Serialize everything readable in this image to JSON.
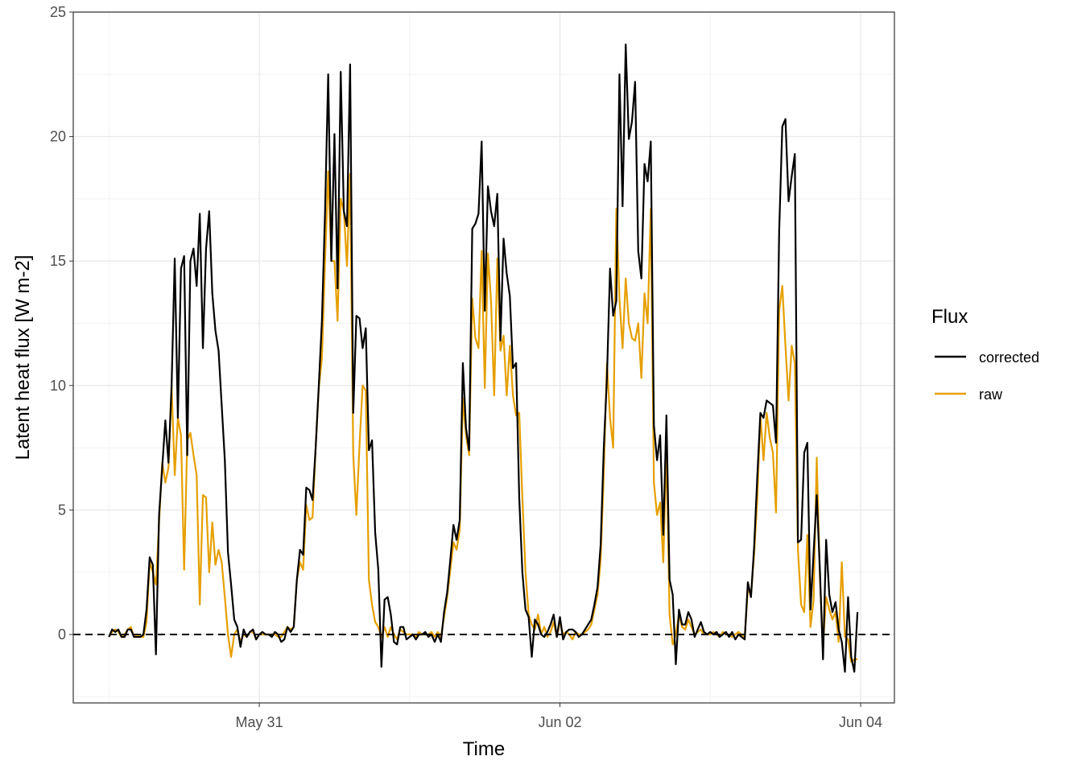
{
  "chart_data": {
    "type": "line",
    "xlabel": "Time",
    "ylabel": "Latent heat flux [W m-2]",
    "legend_title": "Flux",
    "legend": "right",
    "x": [
      0,
      0.5,
      1,
      1.5,
      2,
      2.5,
      3,
      3.5,
      4,
      4.5,
      5,
      5.5,
      6,
      6.5,
      7,
      7.5,
      8,
      8.5,
      9,
      9.5,
      10,
      10.5,
      11,
      11.5,
      12,
      12.5,
      13,
      13.5,
      14,
      14.5,
      15,
      15.5,
      16,
      16.5,
      17,
      17.5,
      18,
      18.5,
      19,
      19.5,
      20,
      20.5,
      21,
      21.5,
      22,
      22.5,
      23,
      23.5,
      24,
      24.5,
      25,
      25.5,
      26,
      26.5,
      27,
      27.5,
      28,
      28.5,
      29,
      29.5,
      30,
      30.5,
      31,
      31.5,
      32,
      32.5,
      33,
      33.5,
      34,
      34.5,
      35,
      35.5,
      36,
      36.5,
      37,
      37.5,
      38,
      38.5,
      39,
      39.5,
      40,
      40.5,
      41,
      41.5,
      42,
      42.5,
      43,
      43.5,
      44,
      44.5,
      45,
      45.5,
      46,
      46.5,
      47,
      47.5,
      48,
      48.5,
      49,
      49.5,
      50,
      50.5,
      51,
      51.5,
      52,
      52.5,
      53,
      53.5,
      54,
      54.5,
      55,
      55.5,
      56,
      56.5,
      57,
      57.5,
      58,
      58.5,
      59,
      59.5,
      60,
      60.5,
      61,
      61.5,
      62,
      62.5,
      63,
      63.5,
      64,
      64.5,
      65,
      65.5,
      66,
      66.5,
      67,
      67.5,
      68,
      68.5,
      69,
      69.5,
      70,
      70.5,
      71,
      71.5,
      72,
      72.5,
      73,
      73.5,
      74,
      74.5,
      75,
      75.5,
      76,
      76.5,
      77,
      77.5,
      78,
      78.5,
      79,
      79.5,
      80,
      80.5,
      81,
      81.5,
      82,
      82.5,
      83,
      83.5,
      84,
      84.5,
      85,
      85.5,
      86,
      86.5,
      87,
      87.5,
      88,
      88.5,
      89,
      89.5,
      90,
      90.5,
      91,
      91.5,
      92,
      92.5,
      93,
      93.5,
      94,
      94.5,
      95,
      95.5,
      96,
      96.5,
      97,
      97.5,
      98,
      98.5,
      99,
      99.5,
      100,
      100.5,
      101,
      101.5,
      102,
      102.5,
      103,
      103.5,
      104,
      104.5,
      105,
      105.5,
      106,
      106.5,
      107,
      107.5,
      108,
      108.5,
      109,
      109.5,
      110,
      110.5,
      111,
      111.5,
      112,
      112.5,
      113,
      113.5,
      114,
      114.5,
      115,
      115.5,
      116,
      116.5,
      117,
      117.5,
      118,
      118.5,
      119,
      119.5
    ],
    "series": [
      {
        "name": "corrected",
        "color": "#000000",
        "values": [
          -0.1,
          0.2,
          0.1,
          0.2,
          -0.1,
          -0.1,
          0.2,
          0.2,
          -0.1,
          -0.1,
          -0.1,
          0,
          1.0,
          3.1,
          2.8,
          -0.8,
          4.8,
          6.7,
          8.6,
          6.9,
          10,
          15.1,
          8.7,
          14.7,
          15.2,
          7.2,
          15.0,
          15.5,
          14.0,
          16.9,
          11.5,
          15.5,
          17.0,
          13.7,
          12.2,
          11.4,
          9.2,
          7.0,
          3.3,
          2.0,
          0.6,
          0.3,
          -0.5,
          0.2,
          -0.1,
          0.1,
          0.2,
          -0.2,
          0.0,
          0.1,
          0.0,
          0.0,
          -0.1,
          0.1,
          0.0,
          -0.3,
          -0.2,
          0.3,
          0.1,
          0.3,
          2.2,
          3.4,
          3.2,
          5.9,
          5.8,
          5.4,
          7.5,
          10.0,
          12.6,
          17.0,
          22.5,
          15.0,
          20.1,
          13.9,
          22.6,
          17.0,
          16.4,
          22.9,
          8.9,
          12.8,
          12.7,
          11.5,
          12.3,
          7.4,
          7.8,
          4.1,
          2.6,
          -1.3,
          1.4,
          1.5,
          0.8,
          -0.3,
          -0.4,
          0.3,
          0.3,
          -0.2,
          -0.1,
          0.0,
          -0.2,
          0.0,
          0.0,
          0.1,
          -0.1,
          0.0,
          -0.3,
          0.0,
          -0.3,
          0.9,
          1.7,
          3.0,
          4.4,
          3.8,
          4.6,
          10.9,
          8.3,
          7.4,
          16.3,
          16.5,
          16.9,
          19.8,
          13.0,
          18.0,
          17.0,
          16.4,
          17.7,
          11.8,
          15.9,
          14.5,
          13.6,
          10.7,
          10.9,
          5.5,
          2.5,
          1.0,
          0.7,
          -0.9,
          0.6,
          0.4,
          0.0,
          -0.1,
          0.1,
          0.4,
          0.8,
          -0.1,
          0.7,
          -0.2,
          0.1,
          0.2,
          0.2,
          0.1,
          -0.1,
          0.0,
          0.2,
          0.4,
          0.6,
          1.2,
          1.9,
          3.6,
          7.5,
          10.3,
          14.7,
          12.8,
          13.4,
          22.5,
          17.2,
          23.7,
          19.9,
          20.6,
          22.2,
          15.4,
          14.3,
          18.9,
          18.2,
          19.8,
          8.4,
          7.0,
          8.0,
          4.0,
          8.8,
          2.2,
          1.6,
          -1.2,
          1.0,
          0.4,
          0.4,
          0.9,
          0.6,
          -0.1,
          0.2,
          0.5,
          0.1,
          0.0,
          0.1,
          0.0,
          0.1,
          -0.1,
          0.0,
          0.1,
          -0.1,
          0.1,
          -0.2,
          0.0,
          -0.1,
          -0.2,
          2.1,
          1.5,
          3.5,
          6.3,
          8.9,
          8.7,
          9.4,
          9.3,
          9.2,
          7.7,
          16.2,
          20.4,
          20.7,
          17.4,
          18.4,
          19.3,
          3.7,
          3.8,
          7.3,
          7.7,
          1.0,
          3.3,
          5.6,
          2.6,
          -1.0,
          3.8,
          1.6,
          0.9,
          1.3,
          0.2,
          -0.3,
          -1.5,
          1.5,
          -0.9,
          -1.5,
          0.9
        ]
      },
      {
        "name": "raw",
        "color": "#E69F00",
        "values": [
          -0.1,
          0.1,
          0.2,
          0.1,
          -0.1,
          0.0,
          0.2,
          0.3,
          -0.1,
          0.0,
          -0.1,
          -0.1,
          0.5,
          2.9,
          2.5,
          2.0,
          4.5,
          6.9,
          6.1,
          6.7,
          10,
          6.4,
          8.7,
          8.0,
          2.6,
          7.8,
          8.1,
          7.2,
          6.4,
          1.2,
          5.6,
          5.5,
          2.5,
          4.5,
          2.8,
          3.4,
          2.9,
          1.5,
          0.0,
          -0.9,
          0.0,
          0.2,
          -0.3,
          0.0,
          -0.1,
          0.1,
          0.1,
          -0.2,
          0.0,
          0.0,
          0.0,
          0.0,
          0.0,
          0.0,
          -0.1,
          -0.1,
          0.1,
          0.3,
          0.2,
          0.3,
          2.2,
          2.9,
          2.6,
          5.2,
          4.6,
          4.7,
          7.5,
          9.9,
          11.1,
          15,
          18.6,
          15,
          15.0,
          12.6,
          17.5,
          17.0,
          14.8,
          18.5,
          7.2,
          4.8,
          7.6,
          10.0,
          9.8,
          2.2,
          1.2,
          0.5,
          0.3,
          -0.1,
          0.3,
          -0.1,
          0.3,
          0.0,
          -0.2,
          0.2,
          0.1,
          0.0,
          0.0,
          0.0,
          -0.1,
          0.1,
          0.0,
          0.0,
          0.0,
          0.1,
          -0.1,
          0.1,
          -0.1,
          0.7,
          1.5,
          2.6,
          3.7,
          3.4,
          4.2,
          9.5,
          8.0,
          7.2,
          13.5,
          11.9,
          11.5,
          15.4,
          9.9,
          15.3,
          13.4,
          9.6,
          15.1,
          11.4,
          12.0,
          9.6,
          11.6,
          9.6,
          8.8,
          8.9,
          5.5,
          2.5,
          0.8,
          0.4,
          0.2,
          0.8,
          0.0,
          0.3,
          -0.1,
          0.1,
          0.5,
          -0.1,
          0.5,
          0.0,
          0.1,
          0.0,
          -0.2,
          0.1,
          0.0,
          0.0,
          0.1,
          0.2,
          0.4,
          1.0,
          1.6,
          3.0,
          6.5,
          10.9,
          8.7,
          7.5,
          17.1,
          13.5,
          11.5,
          14.3,
          12.5,
          11.9,
          11.8,
          12.5,
          10.3,
          13.7,
          12.5,
          17.1,
          6.1,
          4.8,
          5.3,
          2.9,
          7.5,
          0.8,
          -0.4,
          0.0,
          0.8,
          0.3,
          0.2,
          0.6,
          0.3,
          0.0,
          0.1,
          0.2,
          0.0,
          0.0,
          0.0,
          0.1,
          0.0,
          -0.1,
          0.1,
          0.0,
          0.0,
          -0.1,
          0.0,
          0.1,
          0.0,
          -0.1,
          1.8,
          1.6,
          3.2,
          5.4,
          8.8,
          7.0,
          8.9,
          7.9,
          7.3,
          4.9,
          13.0,
          14.0,
          11.6,
          9.4,
          11.6,
          10.9,
          3.4,
          1.2,
          0.9,
          4.0,
          0.3,
          1.4,
          7.1,
          2.3,
          -0.4,
          1.5,
          1.0,
          0.6,
          0.9,
          -0.3,
          2.9,
          -0.1,
          -0.2,
          -1.1,
          -1.0,
          -1.0
        ]
      }
    ],
    "xlim": [
      -5.7,
      125.4
    ],
    "ylim": [
      -2.75,
      25
    ],
    "xticks": [
      {
        "value": 24,
        "label": "May 31"
      },
      {
        "value": 72,
        "label": "Jun 02"
      },
      {
        "value": 120,
        "label": "Jun 04"
      }
    ],
    "xminor": [
      0,
      48,
      96
    ],
    "yticks": [
      0,
      5,
      10,
      15,
      20,
      25
    ],
    "yminor": [
      -2.5,
      2.5,
      7.5,
      12.5,
      17.5,
      22.5
    ],
    "grid": true,
    "hline": 0
  }
}
